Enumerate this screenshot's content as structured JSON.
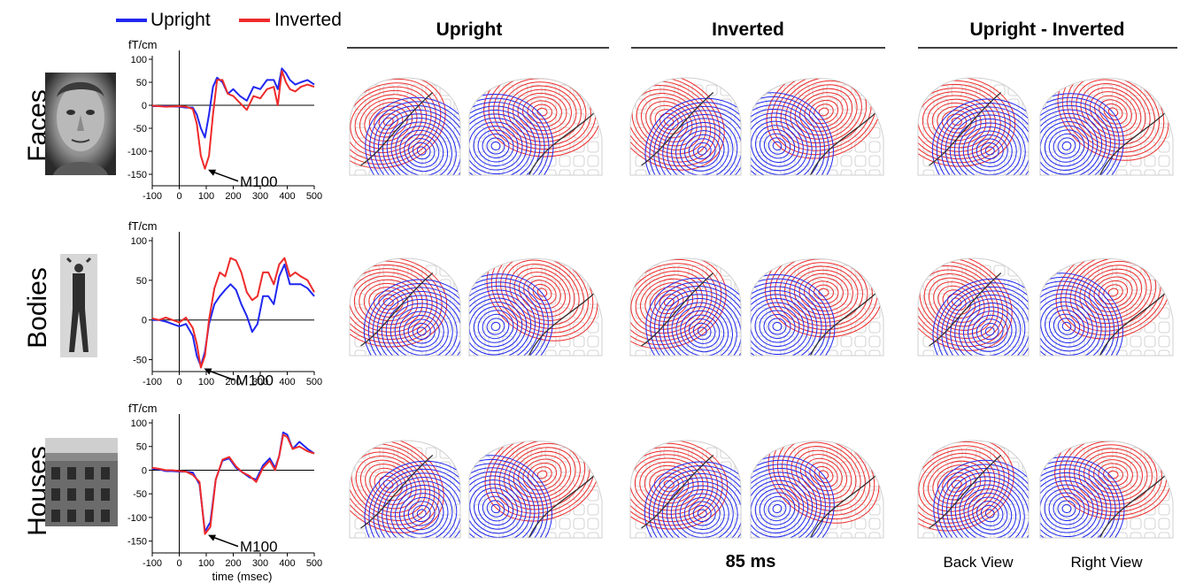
{
  "legend": [
    {
      "label": "Upright",
      "color": "#2027f0"
    },
    {
      "label": "Inverted",
      "color": "#ee2b2b"
    }
  ],
  "column_headers": [
    "Upright",
    "Inverted",
    "Upright - Inverted"
  ],
  "time_label": "85 ms",
  "view_labels": [
    "Back View",
    "Right View"
  ],
  "colors": {
    "upright": "#2027f0",
    "inverted": "#ee2b2b",
    "topo_positive": "#ee2b2b",
    "topo_negative": "#2027f0",
    "topo_zero": "#333333",
    "sensor_grid": "#c8c8c8"
  },
  "rows": [
    {
      "label": "Faces",
      "image_icon": "face-photo-icon"
    },
    {
      "label": "Bodies",
      "image_icon": "body-photo-icon"
    },
    {
      "label": "Houses",
      "image_icon": "house-photo-icon"
    }
  ],
  "chart_data": [
    {
      "type": "line",
      "title": "",
      "ylabel": "fT/cm",
      "xlabel": "",
      "xlim": [
        -100,
        500
      ],
      "ylim": [
        -175,
        100
      ],
      "xticks": [
        -100,
        0,
        100,
        200,
        300,
        400,
        500
      ],
      "yticks": [
        100,
        50,
        0,
        -50,
        -100,
        -150
      ],
      "annotation": {
        "text": "M100",
        "x": 100,
        "y": -138
      },
      "x": [
        -100,
        -50,
        0,
        25,
        50,
        65,
        80,
        95,
        110,
        125,
        140,
        160,
        180,
        200,
        225,
        250,
        275,
        300,
        325,
        350,
        365,
        380,
        395,
        410,
        430,
        450,
        475,
        500
      ],
      "series": [
        {
          "name": "Upright",
          "values": [
            -2,
            -2,
            -3,
            -5,
            -5,
            -20,
            -50,
            -70,
            -20,
            40,
            60,
            50,
            25,
            35,
            20,
            10,
            40,
            35,
            55,
            55,
            35,
            80,
            70,
            55,
            45,
            50,
            55,
            45
          ]
        },
        {
          "name": "Inverted",
          "values": [
            -1,
            -3,
            -2,
            -3,
            -8,
            -40,
            -110,
            -138,
            -110,
            -20,
            55,
            55,
            25,
            20,
            5,
            -10,
            20,
            15,
            35,
            40,
            0,
            75,
            50,
            35,
            30,
            40,
            45,
            40
          ]
        }
      ]
    },
    {
      "type": "line",
      "title": "",
      "ylabel": "fT/cm",
      "xlabel": "",
      "xlim": [
        -100,
        500
      ],
      "ylim": [
        -65,
        100
      ],
      "xticks": [
        -100,
        0,
        100,
        200,
        300,
        400,
        500
      ],
      "yticks": [
        100,
        50,
        0,
        -50
      ],
      "annotation": {
        "text": "M100",
        "x": 85,
        "y": -60
      },
      "x": [
        -100,
        -75,
        -50,
        -25,
        0,
        25,
        50,
        65,
        80,
        95,
        110,
        130,
        150,
        170,
        190,
        210,
        230,
        250,
        270,
        290,
        310,
        330,
        350,
        370,
        390,
        410,
        430,
        450,
        475,
        500
      ],
      "series": [
        {
          "name": "Upright",
          "values": [
            0,
            0,
            -2,
            -5,
            -8,
            -5,
            -20,
            -45,
            -58,
            -40,
            -5,
            20,
            30,
            38,
            45,
            38,
            20,
            5,
            -15,
            -5,
            30,
            30,
            20,
            55,
            70,
            45,
            45,
            45,
            40,
            30
          ]
        },
        {
          "name": "Inverted",
          "values": [
            2,
            0,
            3,
            0,
            -3,
            3,
            -10,
            -30,
            -60,
            -45,
            0,
            40,
            60,
            55,
            78,
            75,
            60,
            35,
            25,
            30,
            60,
            60,
            45,
            70,
            78,
            55,
            60,
            55,
            50,
            35
          ]
        }
      ]
    },
    {
      "type": "line",
      "title": "",
      "ylabel": "fT/cm",
      "xlabel": "time (msec)",
      "xlim": [
        -100,
        500
      ],
      "ylim": [
        -175,
        100
      ],
      "xticks": [
        -100,
        0,
        100,
        200,
        300,
        400,
        500
      ],
      "yticks": [
        100,
        50,
        0,
        -50,
        -100,
        -150
      ],
      "annotation": {
        "text": "M100",
        "x": 100,
        "y": -135
      },
      "x": [
        -100,
        -75,
        -50,
        -25,
        0,
        25,
        50,
        75,
        95,
        115,
        135,
        160,
        185,
        210,
        235,
        260,
        285,
        310,
        335,
        355,
        370,
        385,
        400,
        420,
        445,
        475,
        500
      ],
      "series": [
        {
          "name": "Upright",
          "values": [
            3,
            2,
            -2,
            -2,
            -3,
            -3,
            -5,
            -30,
            -130,
            -110,
            -20,
            20,
            25,
            5,
            -5,
            -15,
            -20,
            10,
            25,
            5,
            30,
            80,
            75,
            45,
            60,
            45,
            35
          ]
        },
        {
          "name": "Inverted",
          "values": [
            5,
            3,
            0,
            0,
            -2,
            -3,
            -10,
            -25,
            -135,
            -120,
            -20,
            22,
            28,
            8,
            -5,
            -12,
            -25,
            5,
            20,
            0,
            30,
            75,
            70,
            45,
            50,
            40,
            35
          ]
        }
      ]
    }
  ]
}
